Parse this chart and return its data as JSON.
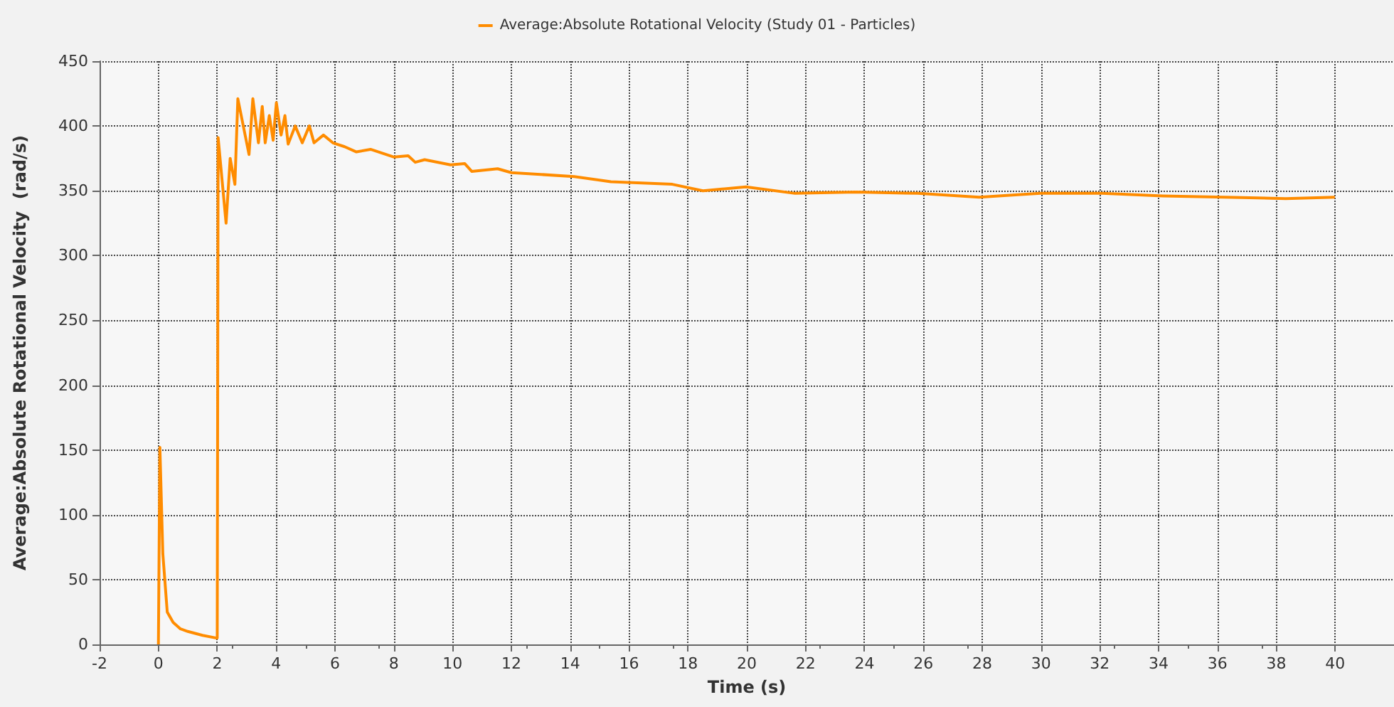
{
  "chart_data": {
    "type": "line",
    "xlabel": "Time (s)",
    "ylabel": "Average:Absolute Rotational Velocity  (rad/s)",
    "xlim": [
      -2,
      42
    ],
    "xticks": [
      -2,
      0,
      2,
      4,
      6,
      8,
      10,
      12,
      14,
      16,
      18,
      20,
      22,
      24,
      26,
      28,
      30,
      32,
      34,
      36,
      38,
      40
    ],
    "ylim": [
      0,
      450
    ],
    "yticks": [
      0,
      50,
      100,
      150,
      200,
      250,
      300,
      350,
      400,
      450
    ],
    "grid": true,
    "legend": "top",
    "marker": "none",
    "line_style": "solid",
    "series": [
      {
        "name": "Average:Absolute Rotational Velocity (Study 01 - Particles)",
        "color": "#ff8c00",
        "x": [
          0,
          0.05,
          0.15,
          0.3,
          0.5,
          0.75,
          1,
          1.5,
          1.95,
          2.0,
          2.03,
          2.3,
          2.44,
          2.6,
          2.7,
          3.08,
          3.21,
          3.4,
          3.53,
          3.63,
          3.77,
          3.9,
          4.01,
          4.17,
          4.3,
          4.41,
          4.65,
          4.89,
          5.13,
          5.29,
          5.61,
          5.93,
          6.33,
          6.73,
          7.21,
          8.01,
          8.49,
          8.73,
          9.05,
          9.93,
          10.41,
          10.65,
          11.53,
          12.0,
          14.13,
          15.38,
          17.47,
          18.51,
          19.97,
          21.64,
          23.72,
          25.81,
          27.9,
          29.98,
          32.07,
          34.15,
          36.24,
          38.32,
          39.99
        ],
        "values": [
          0,
          152,
          70,
          25,
          17,
          12,
          10,
          7,
          5,
          5,
          391,
          325,
          375,
          355,
          421,
          378,
          421,
          387,
          415,
          387,
          408,
          389,
          418,
          393,
          408,
          386,
          400,
          387,
          400,
          387,
          393,
          387,
          384,
          380,
          382,
          376,
          377,
          372,
          374,
          370,
          371,
          365,
          367,
          364,
          361,
          357,
          355,
          350,
          353,
          348,
          349,
          348,
          345,
          348,
          348,
          346,
          345,
          344,
          345
        ]
      }
    ]
  }
}
